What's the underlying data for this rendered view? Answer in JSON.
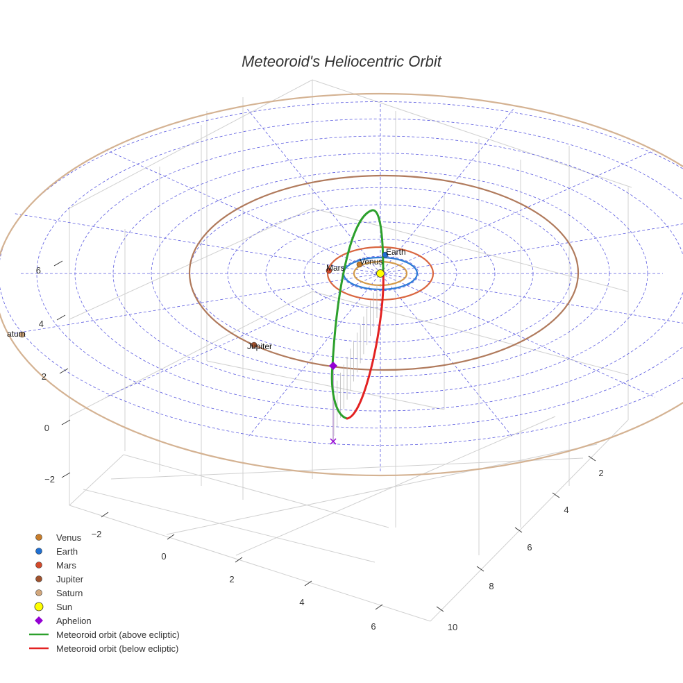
{
  "chart_data": {
    "type": "scatter3d",
    "title": "Meteoroid's Heliocentric Orbit",
    "x_ticks": [
      "−2",
      "0",
      "2",
      "4",
      "6"
    ],
    "y_ticks": [
      "2",
      "4",
      "6",
      "8",
      "10"
    ],
    "z_ticks": [
      "−2",
      "0",
      "2",
      "4",
      "6"
    ],
    "planets": [
      {
        "name": "Venus",
        "label": "Venus",
        "color": "#c87d2a",
        "orbit_color": "#d39a4a"
      },
      {
        "name": "Earth",
        "label": "Earth",
        "color": "#1f6fd1",
        "orbit_color": "#2a7ad6"
      },
      {
        "name": "Mars",
        "label": "Mars",
        "color": "#d2492a",
        "orbit_color": "#d9653f"
      },
      {
        "name": "Jupiter",
        "label": "Jupiter",
        "color": "#a0522d",
        "orbit_color": "#b07a5c"
      },
      {
        "name": "Saturn",
        "label": "atum",
        "color": "#d2a77c",
        "orbit_color": "#d4b292"
      }
    ],
    "sun": {
      "name": "Sun",
      "color": "#ffff00"
    },
    "aphelion": {
      "name": "Aphelion",
      "color": "#9400d3"
    },
    "meteoroid": {
      "above_name": "Meteoroid orbit (above ecliptic)",
      "above_color": "#2ca02c",
      "below_name": "Meteoroid orbit (below ecliptic)",
      "below_color": "#e32222"
    },
    "legend": {
      "position": "bottom-left",
      "entries": [
        {
          "label": "Venus",
          "symbol": "circle",
          "color": "#c87d2a"
        },
        {
          "label": "Earth",
          "symbol": "circle",
          "color": "#1f6fd1"
        },
        {
          "label": "Mars",
          "symbol": "circle",
          "color": "#d2492a"
        },
        {
          "label": "Jupiter",
          "symbol": "circle",
          "color": "#a0522d"
        },
        {
          "label": "Saturn",
          "symbol": "circle",
          "color": "#d2a77c"
        },
        {
          "label": "Sun",
          "symbol": "circle-large",
          "color": "#ffff00"
        },
        {
          "label": "Aphelion",
          "symbol": "diamond",
          "color": "#9400d3"
        },
        {
          "label": "Meteoroid orbit (above ecliptic)",
          "symbol": "line",
          "color": "#2ca02c"
        },
        {
          "label": "Meteoroid orbit (below ecliptic)",
          "symbol": "line",
          "color": "#e32222"
        }
      ]
    },
    "grid": true,
    "ecliptic_grid": {
      "style": "dashed",
      "color": "#5555dd"
    }
  }
}
